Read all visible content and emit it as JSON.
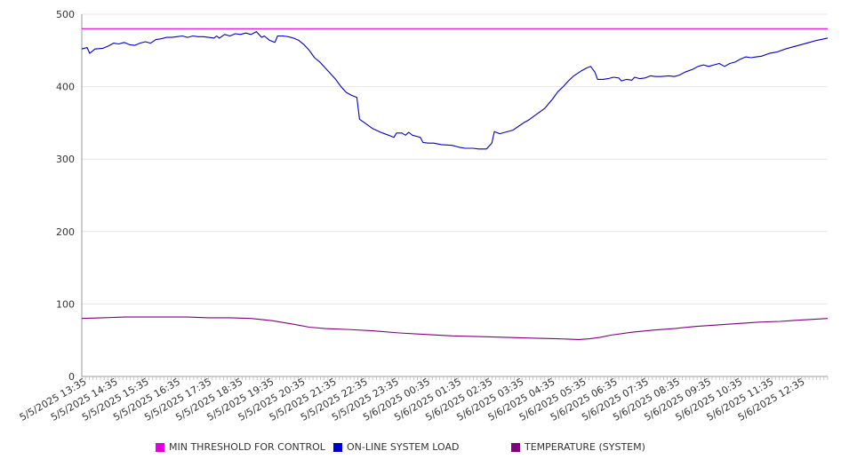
{
  "colors": {
    "threshold": "#e000e0",
    "load": "#0000cc",
    "temperature": "#800080",
    "grid": "#e6e6e6",
    "axis": "#999999"
  },
  "legend": {
    "threshold": "MIN THRESHOLD FOR CONTROL",
    "load": "ON-LINE SYSTEM LOAD",
    "temperature": "TEMPERATURE (SYSTEM)"
  },
  "chart_data": {
    "type": "line",
    "title": "",
    "xlabel": "",
    "ylabel": "",
    "ylim": [
      0,
      500
    ],
    "yticks": [
      0,
      100,
      200,
      300,
      400,
      500
    ],
    "xlim": [
      0,
      1410
    ],
    "grid": "horizontal",
    "legend_position": "bottom",
    "x_tick_labels": [
      "5/5/2025 13:35",
      "5/5/2025 14:35",
      "5/5/2025 15:35",
      "5/5/2025 16:35",
      "5/5/2025 17:35",
      "5/5/2025 18:35",
      "5/5/2025 19:35",
      "5/5/2025 20:35",
      "5/5/2025 21:35",
      "5/5/2025 22:35",
      "5/5/2025 23:35",
      "5/6/2025 00:35",
      "5/6/2025 01:35",
      "5/6/2025 02:35",
      "5/6/2025 03:35",
      "5/6/2025 04:35",
      "5/6/2025 05:35",
      "5/6/2025 06:35",
      "5/6/2025 07:35",
      "5/6/2025 08:35",
      "5/6/2025 09:35",
      "5/6/2025 10:35",
      "5/6/2025 11:35",
      "5/6/2025 12:35"
    ],
    "series": [
      {
        "key": "threshold",
        "name": "MIN THRESHOLD FOR CONTROL",
        "points": [
          [
            0,
            480
          ],
          [
            1410,
            480
          ]
        ]
      },
      {
        "key": "load",
        "name": "ON-LINE SYSTEM LOAD",
        "points": [
          [
            0,
            452
          ],
          [
            10,
            454
          ],
          [
            15,
            446
          ],
          [
            25,
            452
          ],
          [
            40,
            453
          ],
          [
            50,
            456
          ],
          [
            60,
            460
          ],
          [
            70,
            459
          ],
          [
            80,
            461
          ],
          [
            90,
            458
          ],
          [
            100,
            457
          ],
          [
            110,
            460
          ],
          [
            120,
            462
          ],
          [
            130,
            460
          ],
          [
            140,
            465
          ],
          [
            150,
            466
          ],
          [
            160,
            468
          ],
          [
            170,
            468
          ],
          [
            180,
            469
          ],
          [
            190,
            470
          ],
          [
            200,
            468
          ],
          [
            210,
            470
          ],
          [
            220,
            469
          ],
          [
            230,
            469
          ],
          [
            240,
            468
          ],
          [
            250,
            467
          ],
          [
            255,
            470
          ],
          [
            260,
            467
          ],
          [
            270,
            472
          ],
          [
            280,
            470
          ],
          [
            290,
            473
          ],
          [
            300,
            472
          ],
          [
            310,
            474
          ],
          [
            320,
            472
          ],
          [
            330,
            476
          ],
          [
            340,
            468
          ],
          [
            345,
            470
          ],
          [
            355,
            464
          ],
          [
            365,
            461
          ],
          [
            370,
            470
          ],
          [
            380,
            470
          ],
          [
            390,
            469
          ],
          [
            400,
            467
          ],
          [
            410,
            464
          ],
          [
            420,
            458
          ],
          [
            430,
            450
          ],
          [
            440,
            440
          ],
          [
            450,
            434
          ],
          [
            460,
            426
          ],
          [
            470,
            418
          ],
          [
            480,
            410
          ],
          [
            490,
            400
          ],
          [
            500,
            392
          ],
          [
            510,
            388
          ],
          [
            520,
            385
          ],
          [
            525,
            355
          ],
          [
            535,
            350
          ],
          [
            550,
            342
          ],
          [
            565,
            337
          ],
          [
            580,
            333
          ],
          [
            590,
            330
          ],
          [
            595,
            336
          ],
          [
            605,
            336
          ],
          [
            612,
            333
          ],
          [
            618,
            337
          ],
          [
            625,
            333
          ],
          [
            635,
            331
          ],
          [
            640,
            330
          ],
          [
            645,
            323
          ],
          [
            655,
            322
          ],
          [
            665,
            322
          ],
          [
            680,
            320
          ],
          [
            700,
            319
          ],
          [
            715,
            316
          ],
          [
            725,
            315
          ],
          [
            740,
            315
          ],
          [
            750,
            314
          ],
          [
            765,
            314
          ],
          [
            775,
            322
          ],
          [
            780,
            338
          ],
          [
            790,
            335
          ],
          [
            800,
            337
          ],
          [
            815,
            340
          ],
          [
            825,
            345
          ],
          [
            835,
            350
          ],
          [
            845,
            354
          ],
          [
            860,
            362
          ],
          [
            875,
            370
          ],
          [
            890,
            383
          ],
          [
            900,
            393
          ],
          [
            910,
            400
          ],
          [
            920,
            408
          ],
          [
            930,
            415
          ],
          [
            945,
            422
          ],
          [
            955,
            426
          ],
          [
            962,
            428
          ],
          [
            970,
            420
          ],
          [
            975,
            410
          ],
          [
            985,
            410
          ],
          [
            995,
            411
          ],
          [
            1005,
            413
          ],
          [
            1015,
            412
          ],
          [
            1020,
            408
          ],
          [
            1030,
            410
          ],
          [
            1040,
            409
          ],
          [
            1045,
            413
          ],
          [
            1055,
            411
          ],
          [
            1065,
            412
          ],
          [
            1075,
            415
          ],
          [
            1085,
            414
          ],
          [
            1095,
            414
          ],
          [
            1110,
            415
          ],
          [
            1120,
            414
          ],
          [
            1130,
            416
          ],
          [
            1140,
            420
          ],
          [
            1155,
            424
          ],
          [
            1165,
            428
          ],
          [
            1175,
            430
          ],
          [
            1185,
            428
          ],
          [
            1195,
            430
          ],
          [
            1205,
            432
          ],
          [
            1215,
            428
          ],
          [
            1225,
            432
          ],
          [
            1235,
            434
          ],
          [
            1245,
            438
          ],
          [
            1255,
            441
          ],
          [
            1265,
            440
          ],
          [
            1275,
            441
          ],
          [
            1285,
            442
          ],
          [
            1300,
            446
          ],
          [
            1315,
            448
          ],
          [
            1330,
            452
          ],
          [
            1345,
            455
          ],
          [
            1360,
            458
          ],
          [
            1375,
            461
          ],
          [
            1390,
            464
          ],
          [
            1410,
            467
          ]
        ]
      },
      {
        "key": "temperature",
        "name": "TEMPERATURE (SYSTEM)",
        "points": [
          [
            0,
            80
          ],
          [
            40,
            81
          ],
          [
            80,
            82
          ],
          [
            120,
            82
          ],
          [
            160,
            82
          ],
          [
            200,
            82
          ],
          [
            240,
            81
          ],
          [
            280,
            81
          ],
          [
            320,
            80
          ],
          [
            360,
            77
          ],
          [
            400,
            72
          ],
          [
            430,
            68
          ],
          [
            460,
            66
          ],
          [
            500,
            65
          ],
          [
            550,
            63
          ],
          [
            600,
            60
          ],
          [
            650,
            58
          ],
          [
            700,
            56
          ],
          [
            750,
            55
          ],
          [
            800,
            54
          ],
          [
            850,
            53
          ],
          [
            900,
            52
          ],
          [
            940,
            51
          ],
          [
            960,
            52
          ],
          [
            980,
            54
          ],
          [
            1000,
            57
          ],
          [
            1040,
            61
          ],
          [
            1080,
            64
          ],
          [
            1120,
            66
          ],
          [
            1160,
            69
          ],
          [
            1200,
            71
          ],
          [
            1240,
            73
          ],
          [
            1280,
            75
          ],
          [
            1320,
            76
          ],
          [
            1360,
            78
          ],
          [
            1410,
            80
          ]
        ]
      }
    ]
  }
}
